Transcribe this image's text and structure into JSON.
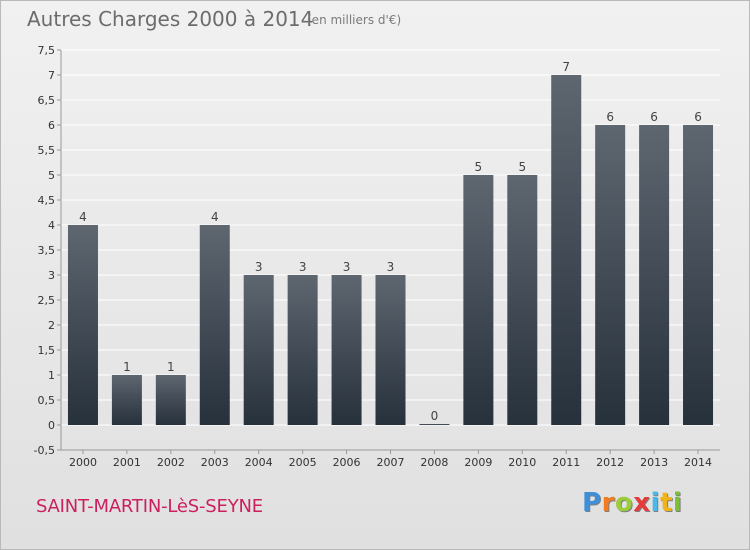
{
  "chart_data": {
    "type": "bar",
    "title": "Autres Charges 2000 à 2014",
    "subtitle": "(en milliers d'€)",
    "categories": [
      "2000",
      "2001",
      "2002",
      "2003",
      "2004",
      "2005",
      "2006",
      "2007",
      "2008",
      "2009",
      "2010",
      "2011",
      "2012",
      "2013",
      "2014"
    ],
    "values": [
      4,
      1,
      1,
      4,
      3,
      3,
      3,
      3,
      0,
      5,
      5,
      7,
      6,
      6,
      6
    ],
    "data_labels": [
      "4",
      "1",
      "1",
      "4",
      "3",
      "3",
      "3",
      "3",
      "0",
      "5",
      "5",
      "7",
      "6",
      "6",
      "6"
    ],
    "ylim": [
      -0.5,
      7.5
    ],
    "y_ticks": [
      "-0,5",
      "0",
      "0,5",
      "1",
      "1,5",
      "2",
      "2,5",
      "3",
      "3,5",
      "4",
      "4,5",
      "5",
      "5,5",
      "6",
      "6,5",
      "7",
      "7,5"
    ],
    "grid": true,
    "colors": {
      "bar_top": "#5e6670",
      "bar_bottom": "#27313b",
      "grid": "#ffffff",
      "axis": "#999999"
    }
  },
  "footer": {
    "city": "SAINT-MARTIN-LèS-SEYNE",
    "brand_letters": [
      "P",
      "r",
      "o",
      "x",
      "i",
      "t",
      "i"
    ],
    "brand_colors": [
      "#3f8fd8",
      "#f47c20",
      "#9ccc3a",
      "#e53b3b",
      "#4cb8e8",
      "#f1b31a",
      "#7bbf39"
    ]
  }
}
